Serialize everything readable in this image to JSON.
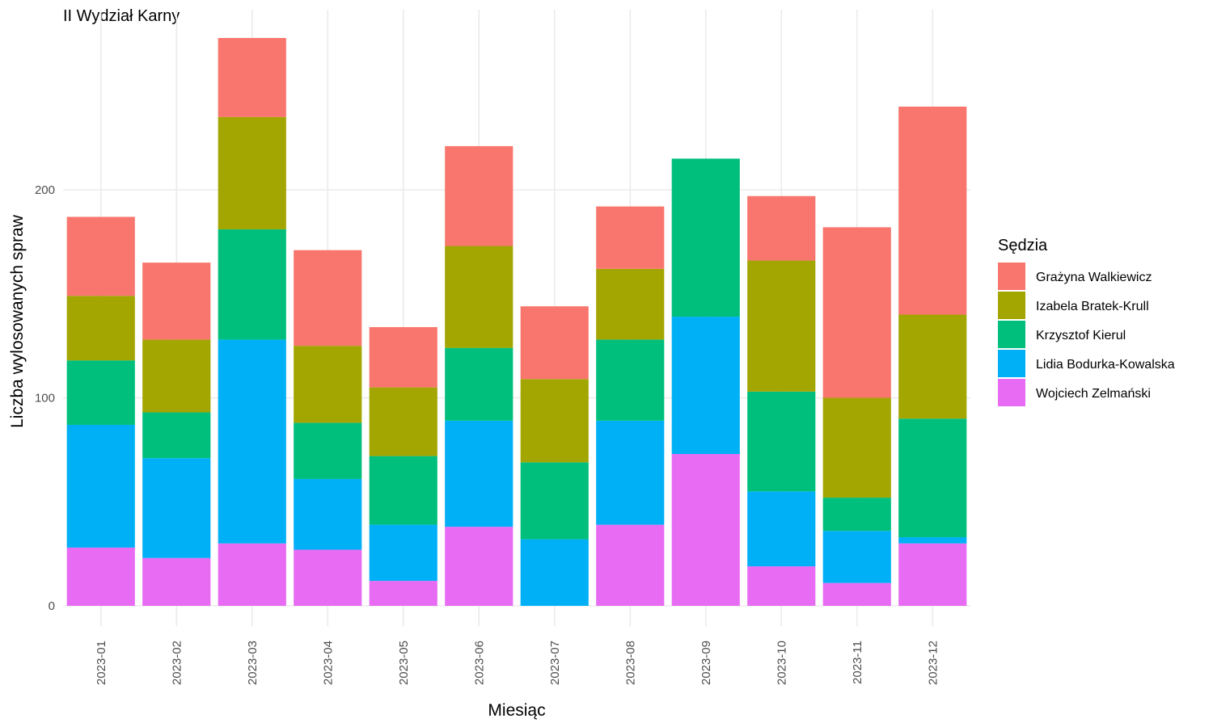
{
  "chart_data": {
    "type": "bar",
    "stacked": true,
    "title": "II Wydział Karny",
    "xlabel": "Miesiąc",
    "ylabel": "Liczba wylosowanych spraw",
    "ylim": [
      -10,
      275
    ],
    "yticks": [
      0,
      100,
      200
    ],
    "grid": true,
    "legend_title": "Sędzia",
    "legend_position": "right",
    "categories": [
      "2023-01",
      "2023-02",
      "2023-03",
      "2023-04",
      "2023-05",
      "2023-06",
      "2023-07",
      "2023-08",
      "2023-09",
      "2023-10",
      "2023-11",
      "2023-12"
    ],
    "series": [
      {
        "name": "Grażyna Walkiewicz",
        "color": "#F8766D",
        "values": [
          38,
          37,
          38,
          46,
          29,
          48,
          35,
          30,
          0,
          31,
          82,
          100
        ]
      },
      {
        "name": "Izabela Bratek-Krull",
        "color": "#A3A500",
        "values": [
          31,
          35,
          54,
          37,
          33,
          49,
          40,
          34,
          0,
          63,
          48,
          50
        ]
      },
      {
        "name": "Krzysztof Kierul",
        "color": "#00BF7D",
        "values": [
          31,
          22,
          53,
          27,
          33,
          35,
          37,
          39,
          76,
          48,
          16,
          57
        ]
      },
      {
        "name": "Lidia Bodurka-Kowalska",
        "color": "#00B0F6",
        "values": [
          59,
          48,
          98,
          34,
          27,
          51,
          32,
          50,
          66,
          36,
          25,
          3
        ]
      },
      {
        "name": "Wojciech Zelmański",
        "color": "#E76BF3",
        "values": [
          28,
          23,
          30,
          27,
          12,
          38,
          0,
          39,
          73,
          19,
          11,
          30
        ]
      }
    ]
  }
}
